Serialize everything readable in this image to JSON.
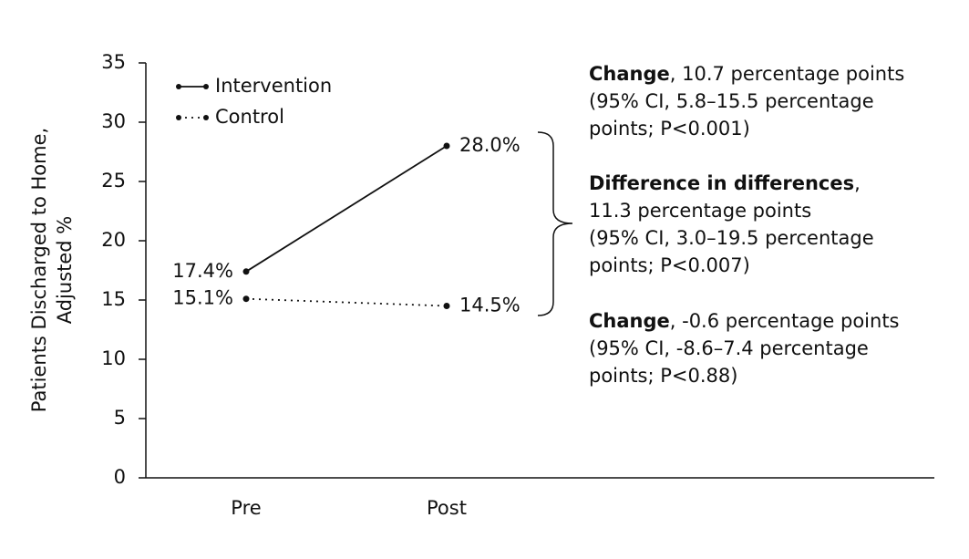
{
  "chart_data": {
    "type": "line",
    "y_label": [
      "Patients Discharged to Home,",
      "Adjusted %"
    ],
    "categories": [
      "Pre",
      "Post"
    ],
    "series": [
      {
        "name": "Intervention",
        "color": "#111111",
        "dash": "solid",
        "values": [
          17.4,
          28.0
        ],
        "value_labels": [
          "17.4%",
          "28.0%"
        ]
      },
      {
        "name": "Control",
        "color": "#111111",
        "dash": "dotted",
        "values": [
          15.1,
          14.5
        ],
        "value_labels": [
          "15.1%",
          "14.5%"
        ]
      }
    ],
    "ylim": [
      0,
      35
    ],
    "yticks": [
      0,
      5,
      10,
      15,
      20,
      25,
      30,
      35
    ],
    "legend": "upper left",
    "annotations": [
      {
        "heading": "Change",
        "lines": [
          ", 10.7 percentage points",
          "(95% CI, 5.8–15.5 percentage",
          "points; P<0.001)"
        ]
      },
      {
        "heading": "Difference in differences",
        "lines": [
          ",",
          "11.3 percentage points",
          "(95% CI, 3.0–19.5 percentage",
          "points; P<0.007)"
        ]
      },
      {
        "heading": "Change",
        "lines": [
          ", -0.6 percentage points",
          "(95% CI, -8.6–7.4 percentage",
          "points; P<0.88)"
        ]
      }
    ]
  }
}
